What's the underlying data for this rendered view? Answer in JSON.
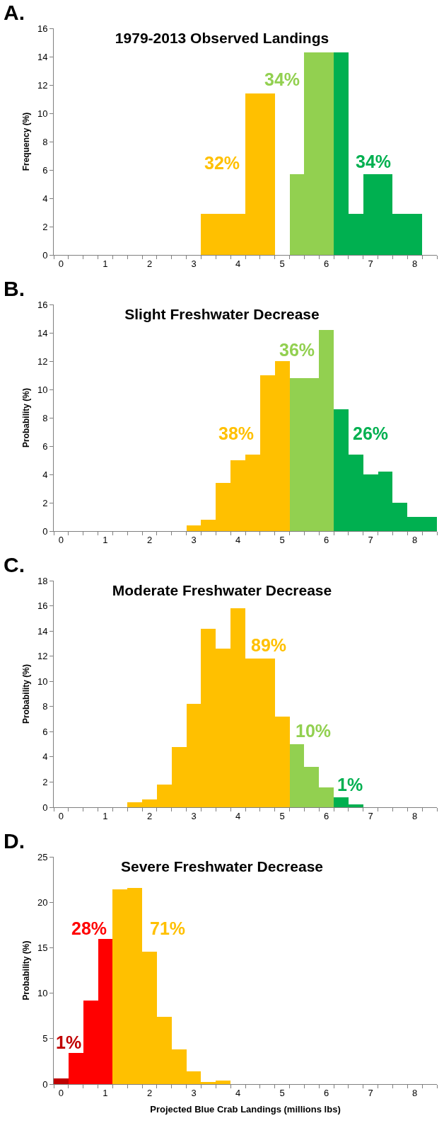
{
  "chart_data": [
    {
      "type": "bar",
      "title": "1979-2013 Observed Landings",
      "ylabel": "Frequency (%)",
      "categories": [
        "0",
        null,
        null,
        "1",
        null,
        null,
        "2",
        null,
        null,
        "3",
        null,
        null,
        "4",
        null,
        null,
        "5",
        null,
        null,
        "6",
        null,
        null,
        "7",
        null,
        null,
        "8",
        null
      ],
      "values": [
        0,
        0,
        0,
        0,
        0,
        0,
        0,
        0,
        0,
        0,
        2.9,
        2.9,
        2.9,
        11.4,
        11.4,
        0,
        5.7,
        14.3,
        14.3,
        14.3,
        2.9,
        5.7,
        5.7,
        2.9,
        2.9,
        0
      ],
      "colors": [
        "#ffc000",
        "#ffc000",
        "#ffc000",
        "#ffc000",
        "#ffc000",
        "#ffc000",
        "#ffc000",
        "#ffc000",
        "#ffc000",
        "#ffc000",
        "#ffc000",
        "#ffc000",
        "#ffc000",
        "#ffc000",
        "#ffc000",
        "#ffc000",
        "#92d050",
        "#92d050",
        "#92d050",
        "#00b050",
        "#00b050",
        "#00b050",
        "#00b050",
        "#00b050",
        "#00b050",
        "#00b050"
      ],
      "ylim": [
        0,
        16
      ],
      "yticks": [
        0,
        2,
        4,
        6,
        8,
        10,
        12,
        14,
        16
      ],
      "grid": false,
      "annotations": [
        "A.",
        "32%",
        "34%",
        "34%"
      ]
    },
    {
      "type": "bar",
      "title": "Slight Freshwater Decrease",
      "ylabel": "Probability (%)",
      "categories": [
        "0",
        null,
        null,
        "1",
        null,
        null,
        "2",
        null,
        null,
        "3",
        null,
        null,
        "4",
        null,
        null,
        "5",
        null,
        null,
        "6",
        null,
        null,
        "7",
        null,
        null,
        "8",
        null
      ],
      "values": [
        0,
        0,
        0,
        0,
        0,
        0,
        0,
        0,
        0,
        0.4,
        0.8,
        3.4,
        5.0,
        5.4,
        11.0,
        12.0,
        10.8,
        10.8,
        14.2,
        8.6,
        5.4,
        4.0,
        4.2,
        2.0,
        1.0,
        1.0
      ],
      "colors": [
        "#ffc000",
        "#ffc000",
        "#ffc000",
        "#ffc000",
        "#ffc000",
        "#ffc000",
        "#ffc000",
        "#ffc000",
        "#ffc000",
        "#ffc000",
        "#ffc000",
        "#ffc000",
        "#ffc000",
        "#ffc000",
        "#ffc000",
        "#ffc000",
        "#92d050",
        "#92d050",
        "#92d050",
        "#00b050",
        "#00b050",
        "#00b050",
        "#00b050",
        "#00b050",
        "#00b050",
        "#00b050"
      ],
      "ylim": [
        0,
        16
      ],
      "yticks": [
        0,
        2,
        4,
        6,
        8,
        10,
        12,
        14,
        16
      ],
      "grid": false,
      "annotations": [
        "B.",
        "38%",
        "36%",
        "26%"
      ]
    },
    {
      "type": "bar",
      "title": "Moderate Freshwater Decrease",
      "ylabel": "Probability (%)",
      "categories": [
        "0",
        null,
        null,
        "1",
        null,
        null,
        "2",
        null,
        null,
        "3",
        null,
        null,
        "4",
        null,
        null,
        "5",
        null,
        null,
        "6",
        null,
        null,
        "7",
        null,
        null,
        "8",
        null
      ],
      "values": [
        0,
        0,
        0,
        0,
        0,
        0.4,
        0.6,
        1.8,
        4.8,
        8.2,
        14.2,
        12.6,
        15.8,
        11.8,
        11.8,
        7.2,
        5.0,
        3.2,
        1.6,
        0.8,
        0.2,
        0,
        0,
        0,
        0,
        0
      ],
      "colors": [
        "#ffc000",
        "#ffc000",
        "#ffc000",
        "#ffc000",
        "#ffc000",
        "#ffc000",
        "#ffc000",
        "#ffc000",
        "#ffc000",
        "#ffc000",
        "#ffc000",
        "#ffc000",
        "#ffc000",
        "#ffc000",
        "#ffc000",
        "#ffc000",
        "#92d050",
        "#92d050",
        "#92d050",
        "#00b050",
        "#00b050",
        "#00b050",
        "#00b050",
        "#00b050",
        "#00b050",
        "#00b050"
      ],
      "ylim": [
        0,
        18
      ],
      "yticks": [
        0,
        2,
        4,
        6,
        8,
        10,
        12,
        14,
        16,
        18
      ],
      "grid": false,
      "annotations": [
        "C.",
        "89%",
        "10%",
        "1%"
      ]
    },
    {
      "type": "bar",
      "title": "Severe Freshwater Decrease",
      "ylabel": "Probability (%)",
      "xlabel": "Projected Blue Crab Landings (millions lbs)",
      "categories": [
        "0",
        null,
        null,
        "1",
        null,
        null,
        "2",
        null,
        null,
        "3",
        null,
        null,
        "4",
        null,
        null,
        "5",
        null,
        null,
        "6",
        null,
        null,
        "7",
        null,
        null,
        "8",
        null
      ],
      "values": [
        0.6,
        3.4,
        9.2,
        16.0,
        21.4,
        21.6,
        14.6,
        7.4,
        3.8,
        1.4,
        0.2,
        0.4,
        0,
        0,
        0,
        0,
        0,
        0,
        0,
        0,
        0,
        0,
        0,
        0,
        0,
        0
      ],
      "colors": [
        "#c00000",
        "#ff0000",
        "#ff0000",
        "#ff0000",
        "#ffc000",
        "#ffc000",
        "#ffc000",
        "#ffc000",
        "#ffc000",
        "#ffc000",
        "#ffc000",
        "#ffc000",
        "#ffc000",
        "#ffc000",
        "#ffc000",
        "#ffc000",
        "#ffc000",
        "#ffc000",
        "#ffc000",
        "#ffc000",
        "#ffc000",
        "#ffc000",
        "#ffc000",
        "#ffc000",
        "#ffc000",
        "#ffc000"
      ],
      "ylim": [
        0,
        25
      ],
      "yticks": [
        0,
        5,
        10,
        15,
        20,
        25
      ],
      "grid": false,
      "annotations": [
        "D.",
        "1%",
        "28%",
        "71%"
      ]
    }
  ]
}
